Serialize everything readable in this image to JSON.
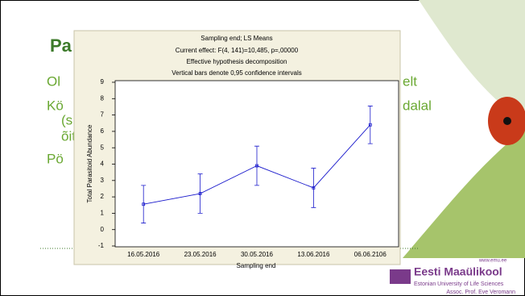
{
  "slide": {
    "title": "Pa",
    "bullets": [
      "Ol",
      "Kö",
      "(s",
      "õit",
      "Pö"
    ],
    "right_fragments": [
      "elt",
      "dalal"
    ],
    "logo": "Eesti Maaülikool",
    "university": "Estonian University of Life Sciences",
    "author": "Assoc. Prof. Eve Veromann",
    "url": "www.emu.ee"
  },
  "chart_data": {
    "type": "line",
    "title": "Sampling end; LS Means",
    "subtitle": [
      "Current effect: F(4, 141)=10,485, p=,00000",
      "Effective hypothesis decomposition",
      "Vertical bars denote 0,95 confidence intervals"
    ],
    "x_label": "Sampling end",
    "y_label": "Total Parasitoid Abundance",
    "categories": [
      "16.05.2016",
      "23.05.2016",
      "30.05.2016",
      "13.06.2016",
      "06.06.2106"
    ],
    "values": [
      1.55,
      2.2,
      3.9,
      2.55,
      6.4
    ],
    "errors": [
      1.15,
      1.2,
      1.2,
      1.2,
      1.15
    ],
    "color": "#1a1acc",
    "ylim": [
      -1,
      9
    ],
    "yticks": [
      -1,
      0,
      1,
      2,
      3,
      4,
      5,
      6,
      7,
      8,
      9
    ],
    "grid": false
  }
}
